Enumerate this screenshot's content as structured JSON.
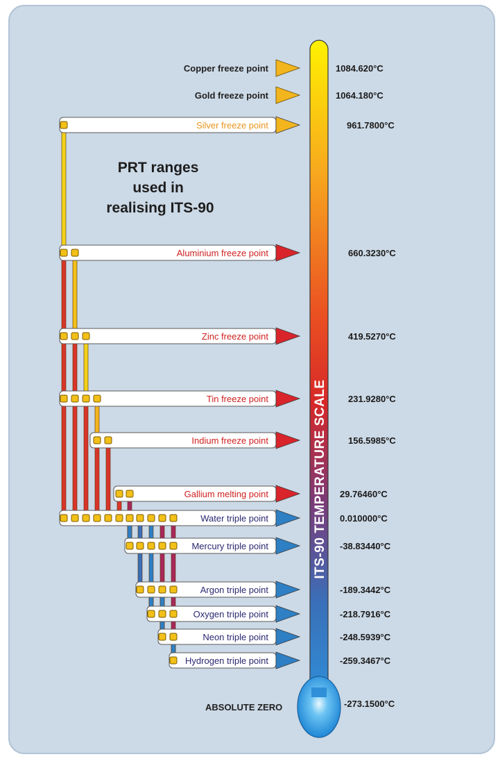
{
  "title_lines": [
    "PRT ranges",
    "used in",
    "realising ITS-90"
  ],
  "scale_label": "ITS-90 TEMPERATURE SCALE",
  "absolute_zero": {
    "label": "ABSOLUTE ZERO",
    "value": "-273.1500°C"
  },
  "points": [
    {
      "label": "Copper freeze point",
      "value": "1084.620°C",
      "style": "plain"
    },
    {
      "label": "Gold freeze point",
      "value": "1064.180°C",
      "style": "plain"
    },
    {
      "label": "Silver freeze point",
      "value": "961.7800°C",
      "style": "banner-hot",
      "label_color": "#e8941c",
      "arrow_color": "#f2b51e"
    },
    {
      "label": "Aluminium freeze point",
      "value": "660.3230°C",
      "style": "banner-hot",
      "label_color": "#d01f1f",
      "arrow_color": "#d8242a"
    },
    {
      "label": "Zinc freeze point",
      "value": "419.5270°C",
      "style": "banner-hot",
      "label_color": "#d01f1f",
      "arrow_color": "#d8242a"
    },
    {
      "label": "Tin freeze point",
      "value": "231.9280°C",
      "style": "banner-hot",
      "label_color": "#d01f1f",
      "arrow_color": "#d8242a"
    },
    {
      "label": "Indium freeze point",
      "value": "156.5985°C",
      "style": "banner-hot",
      "label_color": "#d01f1f",
      "arrow_color": "#d8242a"
    },
    {
      "label": "Gallium melting point",
      "value": "29.76460°C",
      "style": "banner-hot",
      "label_color": "#d01f1f",
      "arrow_color": "#d8242a"
    },
    {
      "label": "Water triple point",
      "value": "0.010000°C",
      "style": "banner-cold",
      "label_color": "#2b2770",
      "arrow_color": "#2e7fc4"
    },
    {
      "label": "Mercury triple point",
      "value": "-38.83440°C",
      "style": "banner-cold",
      "label_color": "#2b2770",
      "arrow_color": "#2e7fc4"
    },
    {
      "label": "Argon triple point",
      "value": "-189.3442°C",
      "style": "banner-cold",
      "label_color": "#2b2770",
      "arrow_color": "#2e7fc4"
    },
    {
      "label": "Oxygen triple point",
      "value": "-218.7916°C",
      "style": "banner-cold",
      "label_color": "#2b2770",
      "arrow_color": "#2e7fc4"
    },
    {
      "label": "Neon triple point",
      "value": "-248.5939°C",
      "style": "banner-cold",
      "label_color": "#2b2770",
      "arrow_color": "#2e7fc4"
    },
    {
      "label": "Hydrogen  triple point",
      "value": "-259.3467°C",
      "style": "banner-cold",
      "label_color": "#2b2770",
      "arrow_color": "#2e7fc4"
    }
  ],
  "colors": {
    "panel": "#ccd9e6",
    "panel_border": "#b1c3d6",
    "copper_gold_arrow": "#f2b51e",
    "node": "#f2c018",
    "node_border": "#7a5a00"
  }
}
